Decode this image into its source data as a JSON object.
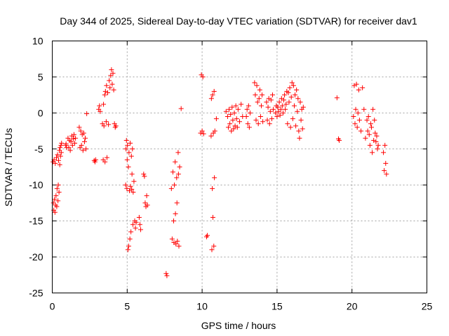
{
  "chart_data": {
    "type": "scatter",
    "title": "Day 344 of 2025, Sidereal Day-to-day VTEC variation (SDTVAR) for receiver dav1",
    "xlabel": "GPS time / hours",
    "ylabel": "SDTVAR / TECUs",
    "xlim": [
      0,
      25
    ],
    "ylim": [
      -25,
      10
    ],
    "xticks": [
      "0",
      "5",
      "10",
      "15",
      "20",
      "25"
    ],
    "yticks": [
      "10",
      "5",
      "0",
      "-5",
      "-10",
      "-15",
      "-20",
      "-25"
    ],
    "grid": true,
    "marker": "plus",
    "marker_color": "#ff0000",
    "series": [
      {
        "name": "SDTVAR",
        "points": [
          [
            0.05,
            -6.8
          ],
          [
            0.08,
            -12.5
          ],
          [
            0.1,
            -13.5
          ],
          [
            0.12,
            -6.5
          ],
          [
            0.15,
            -12.0
          ],
          [
            0.18,
            -13.8
          ],
          [
            0.2,
            -7.0
          ],
          [
            0.22,
            -12.8
          ],
          [
            0.25,
            -11.5
          ],
          [
            0.28,
            -6.2
          ],
          [
            0.3,
            -13.0
          ],
          [
            0.32,
            -10.5
          ],
          [
            0.35,
            -5.8
          ],
          [
            0.38,
            -12.2
          ],
          [
            0.4,
            -10.0
          ],
          [
            0.42,
            -6.6
          ],
          [
            0.45,
            -11.0
          ],
          [
            0.48,
            -5.2
          ],
          [
            0.5,
            -7.2
          ],
          [
            0.52,
            -4.8
          ],
          [
            0.55,
            -6.0
          ],
          [
            0.58,
            -4.5
          ],
          [
            0.6,
            -5.5
          ],
          [
            0.62,
            -4.2
          ],
          [
            0.9,
            -4.5
          ],
          [
            0.92,
            -4.3
          ],
          [
            0.95,
            -4.8
          ],
          [
            1.05,
            -3.5
          ],
          [
            1.1,
            -4.8
          ],
          [
            1.15,
            -3.8
          ],
          [
            1.2,
            -5.2
          ],
          [
            1.25,
            -4.0
          ],
          [
            1.3,
            -3.2
          ],
          [
            1.35,
            -4.5
          ],
          [
            1.4,
            -3.6
          ],
          [
            1.45,
            -3.0
          ],
          [
            1.5,
            -4.2
          ],
          [
            1.55,
            -3.5
          ],
          [
            1.8,
            -2.0
          ],
          [
            1.85,
            -4.8
          ],
          [
            1.9,
            -2.5
          ],
          [
            1.95,
            -4.5
          ],
          [
            2.0,
            -3.0
          ],
          [
            2.05,
            -5.2
          ],
          [
            2.1,
            -2.8
          ],
          [
            2.15,
            -4.0
          ],
          [
            2.2,
            -3.5
          ],
          [
            2.25,
            -5.0
          ],
          [
            2.3,
            -0.1
          ],
          [
            2.8,
            -6.6
          ],
          [
            2.85,
            -6.8
          ],
          [
            2.9,
            -6.5
          ],
          [
            3.1,
            0.5
          ],
          [
            3.15,
            1.0
          ],
          [
            3.2,
            0.2
          ],
          [
            3.35,
            -1.5
          ],
          [
            3.4,
            -6.5
          ],
          [
            3.42,
            1.2
          ],
          [
            3.45,
            -1.8
          ],
          [
            3.5,
            2.5
          ],
          [
            3.52,
            -6.8
          ],
          [
            3.55,
            3.0
          ],
          [
            3.6,
            -1.2
          ],
          [
            3.62,
            3.8
          ],
          [
            3.65,
            -6.2
          ],
          [
            3.7,
            2.8
          ],
          [
            3.75,
            -1.6
          ],
          [
            3.8,
            4.5
          ],
          [
            3.85,
            3.5
          ],
          [
            3.9,
            5.2
          ],
          [
            3.95,
            6.0
          ],
          [
            4.0,
            4.0
          ],
          [
            4.05,
            5.5
          ],
          [
            4.1,
            3.2
          ],
          [
            4.15,
            -1.5
          ],
          [
            4.2,
            -2.0
          ],
          [
            4.25,
            -1.8
          ],
          [
            4.9,
            -10.0
          ],
          [
            4.92,
            -5.0
          ],
          [
            4.95,
            -3.8
          ],
          [
            4.98,
            -10.5
          ],
          [
            5.0,
            -6.5
          ],
          [
            5.02,
            -4.5
          ],
          [
            5.05,
            -19.0
          ],
          [
            5.08,
            -7.5
          ],
          [
            5.1,
            -18.5
          ],
          [
            5.12,
            -5.5
          ],
          [
            5.15,
            -10.8
          ],
          [
            5.18,
            -17.5
          ],
          [
            5.2,
            -4.2
          ],
          [
            5.22,
            -10.2
          ],
          [
            5.25,
            -16.5
          ],
          [
            5.28,
            -6.0
          ],
          [
            5.3,
            -10.6
          ],
          [
            5.32,
            -8.5
          ],
          [
            5.35,
            -5.0
          ],
          [
            5.38,
            -15.5
          ],
          [
            5.4,
            -11.0
          ],
          [
            5.45,
            -9.5
          ],
          [
            5.5,
            -15.0
          ],
          [
            5.55,
            -16.0
          ],
          [
            5.6,
            -15.2
          ],
          [
            5.8,
            -14.5
          ],
          [
            5.85,
            -15.5
          ],
          [
            5.9,
            -16.2
          ],
          [
            6.1,
            -8.5
          ],
          [
            6.15,
            -8.8
          ],
          [
            6.2,
            -12.5
          ],
          [
            6.25,
            -13.0
          ],
          [
            6.3,
            -11.5
          ],
          [
            6.35,
            -12.8
          ],
          [
            7.6,
            -22.3
          ],
          [
            7.65,
            -22.6
          ],
          [
            7.95,
            -10.5
          ],
          [
            8.0,
            -17.5
          ],
          [
            8.05,
            -8.2
          ],
          [
            8.1,
            -15.0
          ],
          [
            8.12,
            -18.0
          ],
          [
            8.15,
            -10.0
          ],
          [
            8.2,
            -6.8
          ],
          [
            8.22,
            -14.0
          ],
          [
            8.25,
            -18.2
          ],
          [
            8.3,
            -9.0
          ],
          [
            8.32,
            -12.5
          ],
          [
            8.35,
            -17.8
          ],
          [
            8.4,
            -5.5
          ],
          [
            8.42,
            -8.5
          ],
          [
            8.45,
            -18.5
          ],
          [
            8.5,
            -7.5
          ],
          [
            8.6,
            0.6
          ],
          [
            9.9,
            -2.8
          ],
          [
            9.95,
            5.3
          ],
          [
            10.0,
            -2.5
          ],
          [
            10.05,
            5.0
          ],
          [
            10.1,
            -2.9
          ],
          [
            10.3,
            -17.2
          ],
          [
            10.35,
            -17.0
          ],
          [
            10.6,
            -3.2
          ],
          [
            10.62,
            2.0
          ],
          [
            10.65,
            -19.0
          ],
          [
            10.68,
            -10.5
          ],
          [
            10.7,
            2.5
          ],
          [
            10.72,
            -14.5
          ],
          [
            10.75,
            -2.8
          ],
          [
            10.78,
            -18.5
          ],
          [
            10.8,
            3.0
          ],
          [
            10.82,
            -9.0
          ],
          [
            10.85,
            -2.5
          ],
          [
            10.95,
            -0.8
          ],
          [
            11.6,
            0.2
          ],
          [
            11.7,
            -0.5
          ],
          [
            11.75,
            -2.0
          ],
          [
            11.8,
            0.5
          ],
          [
            11.85,
            -1.5
          ],
          [
            11.9,
            -0.2
          ],
          [
            11.95,
            -2.5
          ],
          [
            12.0,
            0.8
          ],
          [
            12.05,
            -1.0
          ],
          [
            12.1,
            -2.2
          ],
          [
            12.15,
            0.0
          ],
          [
            12.2,
            -1.8
          ],
          [
            12.25,
            1.0
          ],
          [
            12.3,
            -0.8
          ],
          [
            12.35,
            -2.0
          ],
          [
            12.4,
            0.5
          ],
          [
            12.5,
            -1.2
          ],
          [
            12.6,
            1.2
          ],
          [
            12.7,
            -0.5
          ],
          [
            12.95,
            -0.5
          ],
          [
            13.0,
            0.5
          ],
          [
            13.05,
            -1.5
          ],
          [
            13.1,
            1.0
          ],
          [
            13.15,
            -2.0
          ],
          [
            13.2,
            0.0
          ],
          [
            13.5,
            4.2
          ],
          [
            13.55,
            2.5
          ],
          [
            13.6,
            -1.0
          ],
          [
            13.65,
            3.8
          ],
          [
            13.7,
            1.5
          ],
          [
            13.75,
            -1.5
          ],
          [
            13.8,
            2.0
          ],
          [
            13.85,
            3.2
          ],
          [
            13.9,
            -0.5
          ],
          [
            13.95,
            1.0
          ],
          [
            14.0,
            2.5
          ],
          [
            14.05,
            -1.2
          ],
          [
            14.3,
            1.5
          ],
          [
            14.35,
            -1.0
          ],
          [
            14.4,
            0.8
          ],
          [
            14.45,
            2.0
          ],
          [
            14.5,
            -1.5
          ],
          [
            14.55,
            0.2
          ],
          [
            14.6,
            1.8
          ],
          [
            14.65,
            -0.8
          ],
          [
            14.7,
            2.5
          ],
          [
            14.75,
            0.5
          ],
          [
            14.9,
            0.0
          ],
          [
            14.95,
            1.0
          ],
          [
            15.0,
            -0.5
          ],
          [
            15.05,
            0.8
          ],
          [
            15.1,
            0.2
          ],
          [
            15.15,
            1.5
          ],
          [
            15.2,
            -0.3
          ],
          [
            15.25,
            0.5
          ],
          [
            15.3,
            2.0
          ],
          [
            15.35,
            1.0
          ],
          [
            15.4,
            0.0
          ],
          [
            15.45,
            1.8
          ],
          [
            15.5,
            2.5
          ],
          [
            15.55,
            0.5
          ],
          [
            15.6,
            1.2
          ],
          [
            15.65,
            3.0
          ],
          [
            15.7,
            -1.5
          ],
          [
            15.75,
            2.8
          ],
          [
            15.8,
            1.5
          ],
          [
            15.85,
            3.5
          ],
          [
            15.9,
            -2.0
          ],
          [
            15.95,
            2.2
          ],
          [
            16.0,
            4.2
          ],
          [
            16.05,
            -0.8
          ],
          [
            16.1,
            3.8
          ],
          [
            16.15,
            1.0
          ],
          [
            16.2,
            2.5
          ],
          [
            16.25,
            -1.8
          ],
          [
            16.3,
            3.2
          ],
          [
            16.35,
            0.2
          ],
          [
            16.4,
            2.0
          ],
          [
            16.45,
            -2.5
          ],
          [
            16.5,
            -3.5
          ],
          [
            16.55,
            1.5
          ],
          [
            16.6,
            -1.0
          ],
          [
            16.65,
            0.5
          ],
          [
            16.7,
            -2.2
          ],
          [
            16.75,
            0.8
          ],
          [
            19.0,
            2.1
          ],
          [
            19.1,
            -3.6
          ],
          [
            19.15,
            -3.8
          ],
          [
            20.1,
            -0.5
          ],
          [
            20.15,
            3.8
          ],
          [
            20.2,
            -1.5
          ],
          [
            20.25,
            0.5
          ],
          [
            20.3,
            4.0
          ],
          [
            20.35,
            -2.0
          ],
          [
            20.4,
            0.0
          ],
          [
            20.45,
            3.2
          ],
          [
            20.5,
            -1.0
          ],
          [
            20.6,
            -2.5
          ],
          [
            20.7,
            3.5
          ],
          [
            20.8,
            0.5
          ],
          [
            20.9,
            -3.5
          ],
          [
            21.0,
            -1.0
          ],
          [
            21.05,
            -2.5
          ],
          [
            21.1,
            -0.5
          ],
          [
            21.15,
            -3.0
          ],
          [
            21.2,
            -4.5
          ],
          [
            21.25,
            -1.5
          ],
          [
            21.3,
            -2.0
          ],
          [
            21.35,
            -5.5
          ],
          [
            21.4,
            0.5
          ],
          [
            21.45,
            -3.8
          ],
          [
            21.5,
            -1.0
          ],
          [
            21.55,
            -2.8
          ],
          [
            21.6,
            -4.0
          ],
          [
            21.65,
            -3.2
          ],
          [
            21.7,
            -5.0
          ],
          [
            21.75,
            -4.5
          ],
          [
            22.1,
            -5.5
          ],
          [
            22.15,
            -8.0
          ],
          [
            22.2,
            -4.5
          ],
          [
            22.25,
            -7.0
          ],
          [
            22.3,
            -8.5
          ]
        ]
      }
    ]
  }
}
